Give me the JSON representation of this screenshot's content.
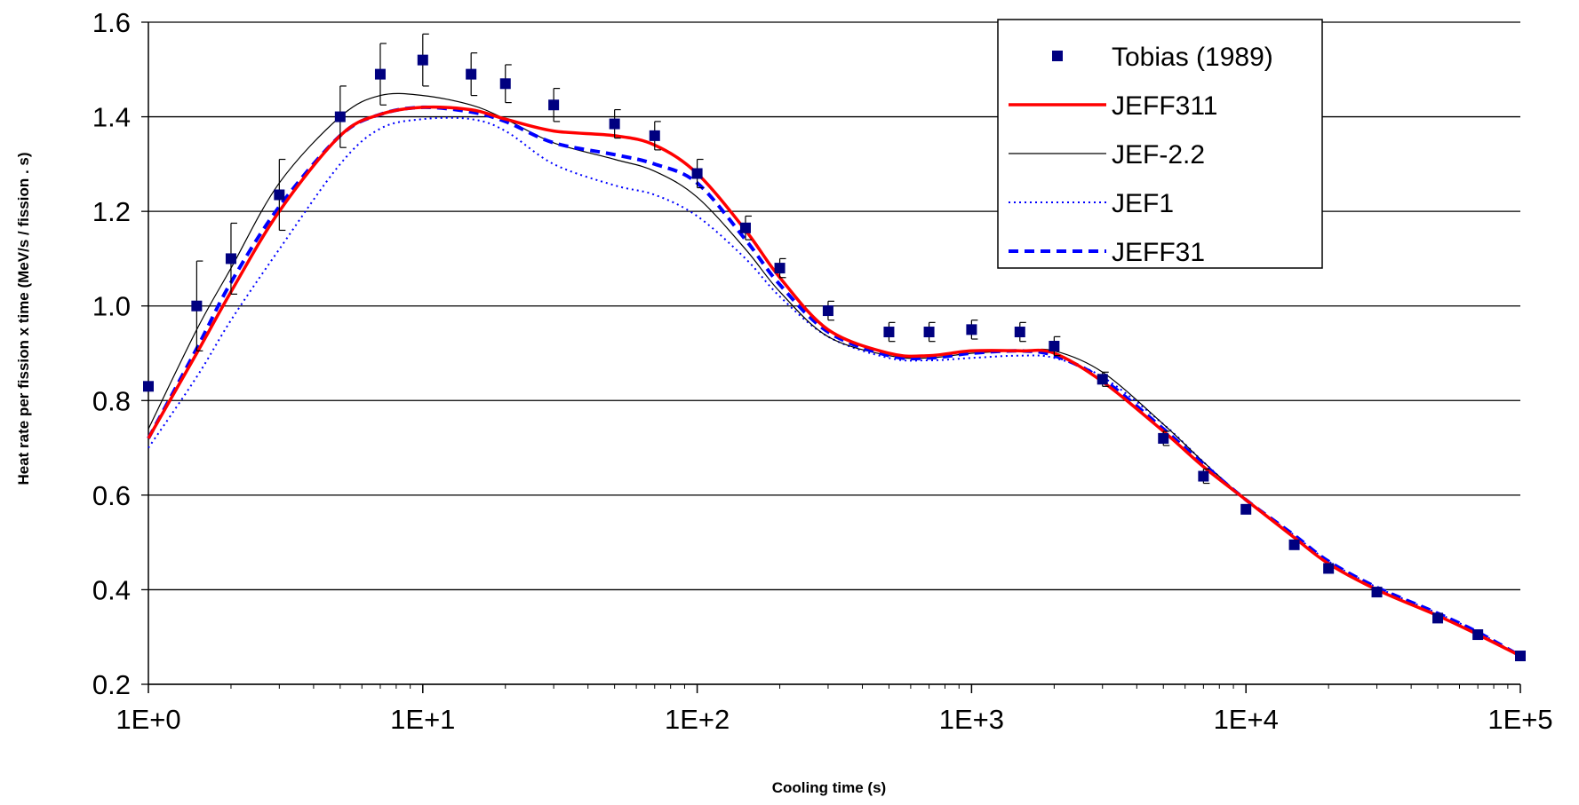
{
  "chart_data": {
    "type": "scatter",
    "xlabel": "Cooling time (s)",
    "ylabel": "Heat rate per fission x time (MeV/s / fission . s)",
    "xscale": "log",
    "xlim": [
      1,
      100000
    ],
    "ylim": [
      0.2,
      1.6
    ],
    "xticks": [
      1,
      10,
      100,
      1000,
      10000,
      100000
    ],
    "xtick_labels": [
      "1E+0",
      "1E+1",
      "1E+2",
      "1E+3",
      "1E+4",
      "1E+5"
    ],
    "yticks": [
      0.2,
      0.4,
      0.6,
      0.8,
      1.0,
      1.2,
      1.4,
      1.6
    ],
    "ytick_labels": [
      "0.2",
      "0.4",
      "0.6",
      "0.8",
      "1.0",
      "1.2",
      "1.4",
      "1.6"
    ],
    "grid": "horizontal",
    "legend_position": "top-right",
    "series": [
      {
        "name": "Tobias (1989)",
        "style": "markers",
        "color": "#000080",
        "x": [
          1,
          1.5,
          2,
          3,
          5,
          7,
          10,
          15,
          20,
          30,
          50,
          70,
          100,
          150,
          200,
          300,
          500,
          700,
          1000,
          1500,
          2000,
          3000,
          5000,
          7000,
          10000,
          15000,
          20000,
          30000,
          50000,
          70000,
          100000
        ],
        "y": [
          0.83,
          1.0,
          1.1,
          1.235,
          1.4,
          1.49,
          1.52,
          1.49,
          1.47,
          1.425,
          1.385,
          1.36,
          1.28,
          1.165,
          1.08,
          0.99,
          0.945,
          0.945,
          0.95,
          0.945,
          0.915,
          0.845,
          0.72,
          0.64,
          0.57,
          0.495,
          0.445,
          0.395,
          0.34,
          0.305,
          0.26
        ],
        "err": [
          0.0,
          0.095,
          0.075,
          0.075,
          0.065,
          0.065,
          0.055,
          0.045,
          0.04,
          0.035,
          0.03,
          0.03,
          0.03,
          0.025,
          0.02,
          0.02,
          0.02,
          0.02,
          0.02,
          0.02,
          0.02,
          0.015,
          0.015,
          0.015,
          0.0,
          0.0,
          0.0,
          0.0,
          0.0,
          0.0,
          0.0
        ]
      },
      {
        "name": "JEFF311",
        "style": "solid-thick",
        "color": "#ff0000",
        "x": [
          1,
          1.5,
          2,
          3,
          5,
          7,
          10,
          15,
          20,
          30,
          50,
          70,
          100,
          150,
          200,
          300,
          500,
          700,
          1000,
          1500,
          2000,
          3000,
          5000,
          7000,
          10000,
          15000,
          20000,
          30000,
          50000,
          70000,
          100000
        ],
        "y": [
          0.72,
          0.9,
          1.03,
          1.2,
          1.36,
          1.405,
          1.42,
          1.415,
          1.395,
          1.37,
          1.36,
          1.34,
          1.28,
          1.16,
          1.06,
          0.95,
          0.9,
          0.895,
          0.905,
          0.905,
          0.9,
          0.84,
          0.735,
          0.66,
          0.59,
          0.51,
          0.455,
          0.4,
          0.345,
          0.305,
          0.26
        ]
      },
      {
        "name": "JEF-2.2",
        "style": "solid-thin",
        "color": "#000000",
        "x": [
          1,
          1.5,
          2,
          3,
          5,
          7,
          10,
          15,
          20,
          30,
          50,
          70,
          100,
          150,
          200,
          300,
          500,
          700,
          1000,
          1500,
          2000,
          3000,
          5000,
          7000,
          10000,
          15000,
          20000,
          30000,
          50000,
          70000,
          100000
        ],
        "y": [
          0.74,
          0.95,
          1.08,
          1.26,
          1.4,
          1.445,
          1.445,
          1.425,
          1.395,
          1.345,
          1.31,
          1.285,
          1.23,
          1.12,
          1.03,
          0.935,
          0.895,
          0.89,
          0.9,
          0.905,
          0.905,
          0.86,
          0.75,
          0.67,
          0.59,
          0.51,
          0.455,
          0.4,
          0.345,
          0.305,
          0.26
        ]
      },
      {
        "name": "JEF1",
        "style": "dotted",
        "color": "#0000ff",
        "x": [
          1,
          1.5,
          2,
          3,
          5,
          7,
          10,
          15,
          20,
          30,
          50,
          70,
          100,
          150,
          200,
          300,
          500,
          700,
          1000,
          1500,
          2000,
          3000,
          5000,
          7000,
          10000,
          15000,
          20000,
          30000,
          50000,
          70000,
          100000
        ],
        "y": [
          0.7,
          0.85,
          0.97,
          1.12,
          1.3,
          1.375,
          1.395,
          1.395,
          1.37,
          1.3,
          1.255,
          1.235,
          1.19,
          1.1,
          1.02,
          0.935,
          0.89,
          0.885,
          0.89,
          0.895,
          0.89,
          0.85,
          0.75,
          0.67,
          0.59,
          0.515,
          0.46,
          0.405,
          0.35,
          0.31,
          0.26
        ]
      },
      {
        "name": "JEFF31",
        "style": "dashed",
        "color": "#0000ff",
        "x": [
          1,
          1.5,
          2,
          3,
          5,
          7,
          10,
          15,
          20,
          30,
          50,
          70,
          100,
          150,
          200,
          300,
          500,
          700,
          1000,
          1500,
          2000,
          3000,
          5000,
          7000,
          10000,
          15000,
          20000,
          30000,
          50000,
          70000,
          100000
        ],
        "y": [
          0.72,
          0.91,
          1.05,
          1.21,
          1.36,
          1.405,
          1.42,
          1.41,
          1.39,
          1.345,
          1.32,
          1.3,
          1.26,
          1.14,
          1.045,
          0.945,
          0.895,
          0.89,
          0.9,
          0.905,
          0.895,
          0.845,
          0.74,
          0.665,
          0.59,
          0.515,
          0.46,
          0.405,
          0.35,
          0.31,
          0.26
        ]
      }
    ]
  }
}
